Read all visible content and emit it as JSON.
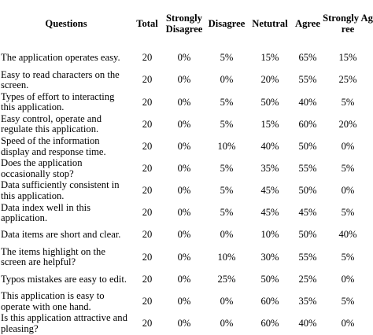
{
  "headers": {
    "questions": "Questions",
    "total": "Total",
    "strongly_disagree": "Strongly Disagree",
    "disagree": "Disagree",
    "neutral": "Netutral",
    "agree": "Agree",
    "strongly_agree": "Strongly Agree"
  },
  "rows": [
    {
      "question": "The application operates easy.",
      "total": "20",
      "strongly_disagree": "0%",
      "disagree": "5%",
      "neutral": "15%",
      "agree": "65%",
      "strongly_agree": "15%"
    },
    {
      "question": "Easy to read characters on the screen.",
      "total": "20",
      "strongly_disagree": "0%",
      "disagree": "0%",
      "neutral": "20%",
      "agree": "55%",
      "strongly_agree": "25%"
    },
    {
      "question": "Types of effort to interacting this application.",
      "total": "20",
      "strongly_disagree": "0%",
      "disagree": "5%",
      "neutral": "50%",
      "agree": "40%",
      "strongly_agree": "5%"
    },
    {
      "question": "Easy control, operate and regulate this application.",
      "total": "20",
      "strongly_disagree": "0%",
      "disagree": "5%",
      "neutral": "15%",
      "agree": "60%",
      "strongly_agree": "20%"
    },
    {
      "question": "Speed of the information display and response time.",
      "total": "20",
      "strongly_disagree": "0%",
      "disagree": "10%",
      "neutral": "40%",
      "agree": "50%",
      "strongly_agree": "0%"
    },
    {
      "question": "Does the application occasionally stop?",
      "total": "20",
      "strongly_disagree": "0%",
      "disagree": "5%",
      "neutral": "35%",
      "agree": "55%",
      "strongly_agree": "5%"
    },
    {
      "question": "Data sufficiently consistent in this application.",
      "total": "20",
      "strongly_disagree": "0%",
      "disagree": "5%",
      "neutral": "45%",
      "agree": "50%",
      "strongly_agree": "0%"
    },
    {
      "question": "Data index well in this application.",
      "total": "20",
      "strongly_disagree": "0%",
      "disagree": "5%",
      "neutral": "45%",
      "agree": "45%",
      "strongly_agree": "5%"
    },
    {
      "question": "Data items are short and clear.",
      "total": "20",
      "strongly_disagree": "0%",
      "disagree": "0%",
      "neutral": "10%",
      "agree": "50%",
      "strongly_agree": "40%"
    },
    {
      "question": "The items highlight on the screen are helpful?",
      "total": "20",
      "strongly_disagree": "0%",
      "disagree": "10%",
      "neutral": "30%",
      "agree": "55%",
      "strongly_agree": "5%"
    },
    {
      "question": "Typos mistakes are easy to edit.",
      "total": "20",
      "strongly_disagree": "0%",
      "disagree": "25%",
      "neutral": "50%",
      "agree": "25%",
      "strongly_agree": "0%"
    },
    {
      "question": "This application is easy to operate with one hand.",
      "total": "20",
      "strongly_disagree": "0%",
      "disagree": "0%",
      "neutral": "60%",
      "agree": "35%",
      "strongly_agree": "5%"
    },
    {
      "question": "Is this application attractive and pleasing?",
      "total": "20",
      "strongly_disagree": "0%",
      "disagree": "0%",
      "neutral": "60%",
      "agree": "40%",
      "strongly_agree": "0%"
    }
  ]
}
